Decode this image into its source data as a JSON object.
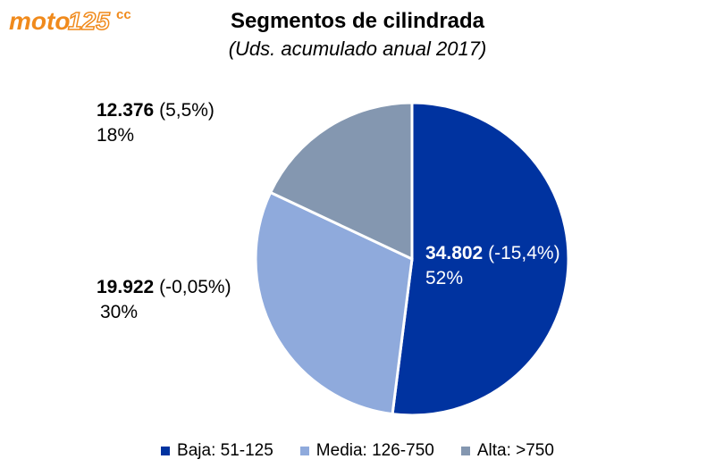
{
  "logo": {
    "text": "moto125",
    "suffix": "cc"
  },
  "chart_data": {
    "type": "pie",
    "title": "Segmentos de cilindrada",
    "subtitle": "(Uds. acumulado anual 2017)",
    "slices": [
      {
        "name": "Baja: 51-125",
        "units": "34.802",
        "change": "(-15,4%)",
        "percent_label": "52%",
        "value": 52,
        "color": "#0033A0"
      },
      {
        "name": "Media: 126-750",
        "units": "19.922",
        "change": "(-0,05%)",
        "percent_label": "30%",
        "value": 30,
        "color": "#8FAADC"
      },
      {
        "name": "Alta: >750",
        "units": "12.376",
        "change": "(5,5%)",
        "percent_label": "18%",
        "value": 18,
        "color": "#8497B0"
      }
    ],
    "legend_position": "bottom"
  }
}
